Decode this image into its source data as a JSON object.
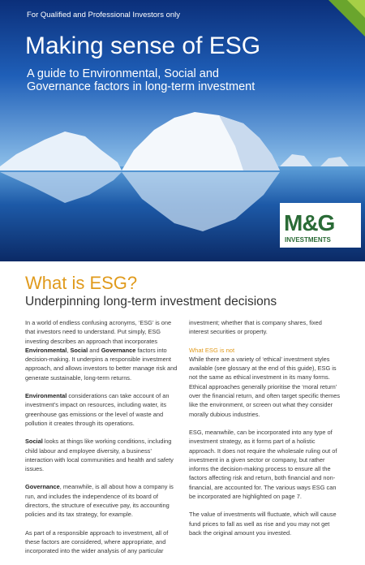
{
  "header": {
    "audience": "For Qualified and Professional Investors only",
    "title": "Making sense of ESG",
    "subtitle": "A guide to Environmental, Social and Governance factors in long-term investment",
    "logo": {
      "brand": "M&G",
      "tagline": "INVESTMENTS"
    }
  },
  "section": {
    "heading": "What is ESG?",
    "subheading": "Underpinning long-term investment decisions",
    "left_column": {
      "paragraphs": [
        [
          {
            "text": "In a world of endless confusing acronyms, ‘ESG’ is one that investors need to understand. Put simply, ESG investing describes an approach that incorporates "
          },
          {
            "text": "Environmental",
            "bold": true
          },
          {
            "text": ", "
          },
          {
            "text": "Social",
            "bold": true
          },
          {
            "text": " and "
          },
          {
            "text": "Governance",
            "bold": true
          },
          {
            "text": " factors into decision-making. It underpins a responsible investment approach, and allows investors to better manage risk and generate sustainable, long-term returns."
          }
        ],
        [
          {
            "text": "Environmental",
            "bold": true
          },
          {
            "text": " considerations can take account of an investment’s impact on resources, including water, its greenhouse gas emissions or the level of waste and pollution it creates through its operations."
          }
        ],
        [
          {
            "text": "Social",
            "bold": true
          },
          {
            "text": " looks at things like working conditions, including child labour and employee diversity, a business’ interaction with local communities and health and safety issues."
          }
        ],
        [
          {
            "text": "Governance",
            "bold": true
          },
          {
            "text": ", meanwhile, is all about how a company is run, and includes the independence of its board of directors, the structure of executive pay, its accounting policies and its tax strategy, for example."
          }
        ],
        [
          {
            "text": "As part of a responsible approach to investment, all of these factors are considered, where appropriate, and incorporated into the wider analysis of any particular"
          }
        ]
      ]
    },
    "right_column": {
      "intro": [
        {
          "text": "investment; whether that is company shares, fixed interest securities or property."
        }
      ],
      "heading": "What ESG is not",
      "paragraphs": [
        [
          {
            "text": "While there are a variety of ‘ethical’ investment styles available (see glossary at the end of this guide), ESG is not the same as ethical investment in its many forms. Ethical approaches generally prioritise the ‘moral return’ over the financial return, and often target specific themes like the environment, or screen out what they consider morally dubious industries."
          }
        ],
        [
          {
            "text": "ESG, meanwhile, can be incorporated into any type of investment strategy, as it forms part of a holistic approach. It does not require the wholesale ruling out of investment in a given sector or company, but rather informs the decision-making process to ensure all the factors affecting risk and return, both financial and non-financial, are accounted for. The various ways ESG can be incorporated are highlighted on page 7."
          }
        ],
        [
          {
            "text": "The value of investments will fluctuate, which will cause fund prices to fall as well as rise and you may not get back the original amount you invested."
          }
        ]
      ]
    }
  }
}
